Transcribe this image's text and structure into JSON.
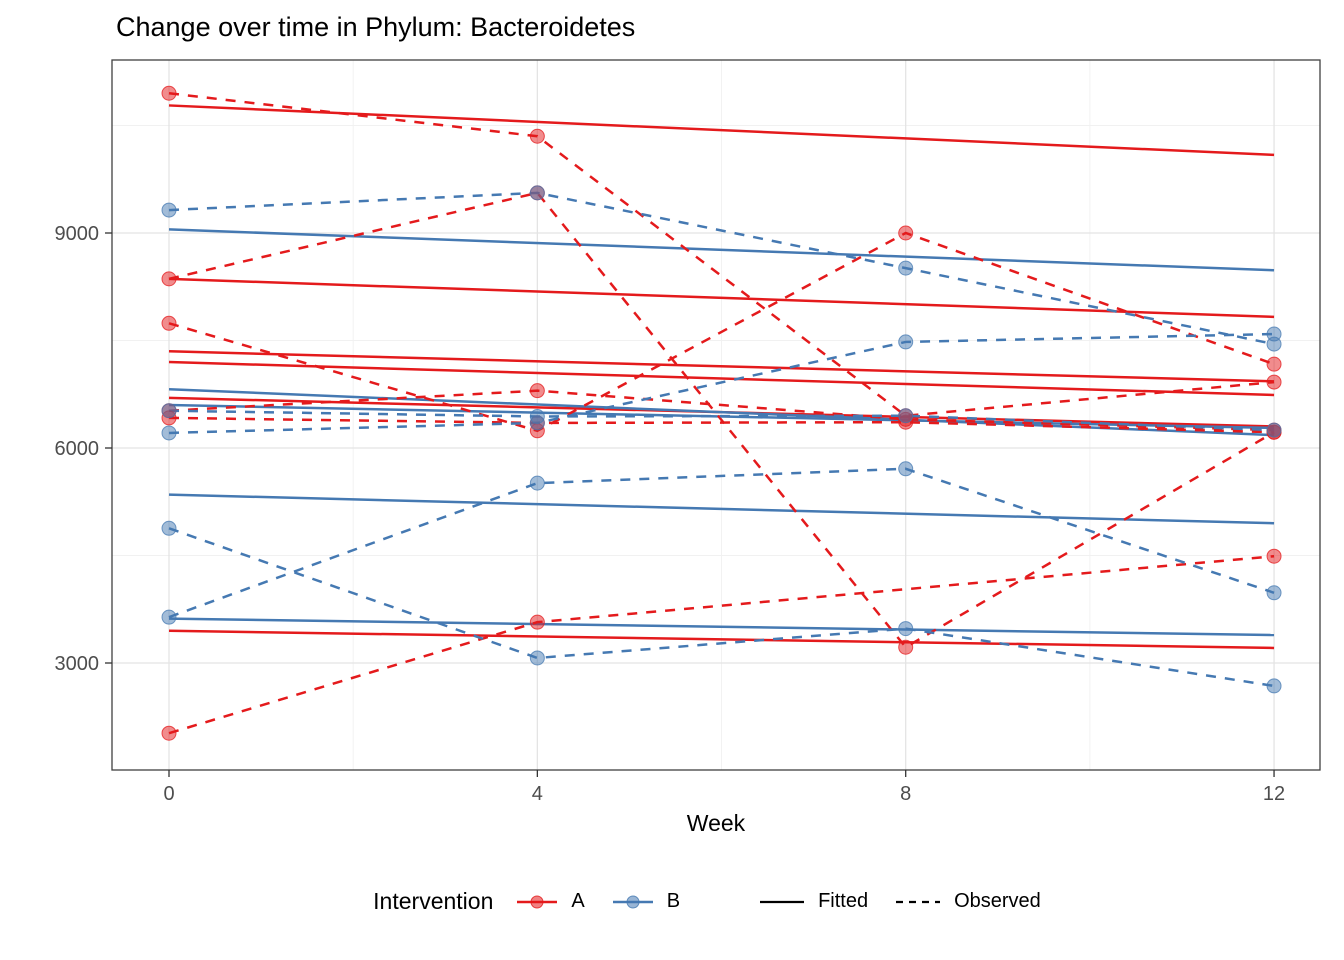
{
  "title": "Change over time in Phylum: Bacteroidetes",
  "legend": {
    "title": "Intervention",
    "group_a_label": "A",
    "group_b_label": "B",
    "fitted_label": "Fitted",
    "observed_label": "Observed"
  },
  "colors": {
    "group_a": "#E41A1C",
    "group_b": "#4579B2",
    "key_black": "#000000",
    "tick_label": "#4D4D4D",
    "grid_major": "#E4E4E4",
    "grid_minor": "#F1F1F1",
    "panel_border": "#404040"
  },
  "chart_data": {
    "type": "line",
    "title": "Change over time in Phylum: Bacteroidetes",
    "xlabel": "Week",
    "ylabel": "",
    "x_ticks": [
      0,
      4,
      8,
      12
    ],
    "x_tick_labels": [
      "0",
      "4",
      "8",
      "12"
    ],
    "y_ticks": [
      3000,
      6000,
      9000
    ],
    "y_tick_labels": [
      "3000",
      "6000",
      "9000"
    ],
    "x_minor": [
      2,
      6,
      10
    ],
    "y_minor": [
      4500,
      7500,
      10500
    ],
    "xlim": [
      -0.619,
      12.499
    ],
    "ylim": [
      1507,
      11414
    ],
    "grid": true,
    "legend_position": "bottom",
    "weeks": [
      0,
      4,
      8,
      12
    ],
    "line_styles": {
      "fitted": "solid",
      "observed": "dashed"
    },
    "series": [
      {
        "id": "A1",
        "group": "A",
        "observed": [
          10950,
          10350,
          6450,
          6920
        ],
        "fitted": [
          10780,
          10090
        ]
      },
      {
        "id": "A2",
        "group": "A",
        "observed": [
          8360,
          9560,
          3220,
          6220
        ],
        "fitted": [
          8360,
          7830
        ]
      },
      {
        "id": "A3",
        "group": "A",
        "observed": [
          7740,
          6240,
          9000,
          7170
        ],
        "fitted": [
          7350,
          6930
        ]
      },
      {
        "id": "A4",
        "group": "A",
        "observed": [
          6520,
          6800,
          6400,
          6250
        ],
        "fitted": [
          7200,
          6740
        ]
      },
      {
        "id": "A5",
        "group": "A",
        "observed": [
          6420,
          6350,
          6360,
          6220
        ],
        "fitted": [
          6700,
          6300
        ]
      },
      {
        "id": "A6",
        "group": "A",
        "observed": [
          2020,
          3570,
          null,
          4490
        ],
        "fitted": [
          3450,
          3210
        ]
      },
      {
        "id": "B1",
        "group": "B",
        "observed": [
          9320,
          9560,
          8510,
          7450
        ],
        "fitted": [
          9050,
          8480
        ]
      },
      {
        "id": "B2",
        "group": "B",
        "observed": [
          6520,
          6440,
          6450,
          6250
        ],
        "fitted": [
          6600,
          6280
        ]
      },
      {
        "id": "B3",
        "group": "B",
        "observed": [
          6210,
          6350,
          7480,
          7590
        ],
        "fitted": [
          6820,
          6180
        ]
      },
      {
        "id": "B4",
        "group": "B",
        "observed": [
          4880,
          3070,
          3480,
          2680
        ],
        "fitted": [
          3620,
          3390
        ]
      },
      {
        "id": "B5",
        "group": "B",
        "observed": [
          3640,
          5510,
          5710,
          3980
        ],
        "fitted": [
          5350,
          4950
        ]
      }
    ]
  }
}
